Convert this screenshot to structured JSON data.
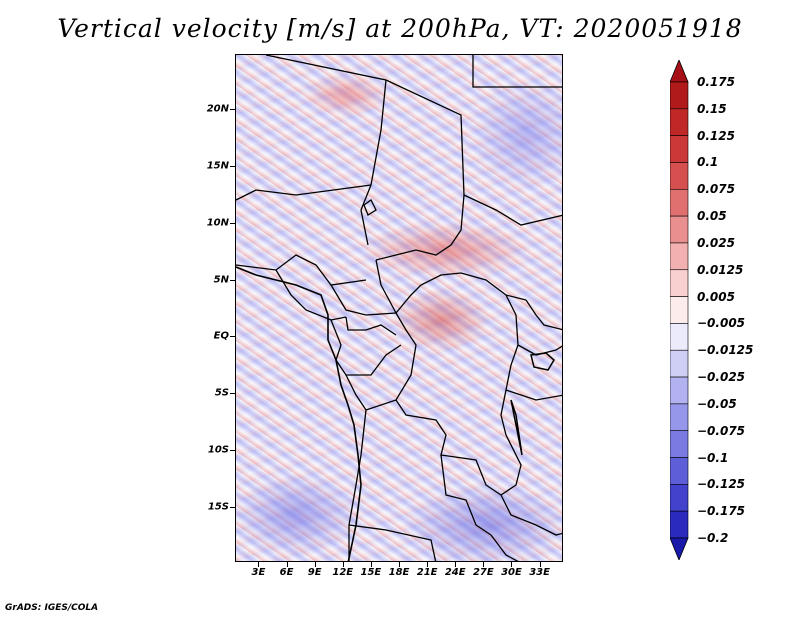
{
  "title": "Vertical velocity [m/s] at 200hPa, VT: 2020051918",
  "credit": "GrADS: IGES/COLA",
  "map": {
    "lat_labels": [
      "20N",
      "15N",
      "10N",
      "5N",
      "EQ",
      "5S",
      "10S",
      "15S"
    ],
    "lat_values": [
      20,
      15,
      10,
      5,
      0,
      -5,
      -10,
      -15
    ],
    "lat_range": [
      -19.8,
      24.8
    ],
    "lon_labels": [
      "3E",
      "6E",
      "9E",
      "12E",
      "15E",
      "18E",
      "21E",
      "24E",
      "27E",
      "30E",
      "33E"
    ],
    "lon_values": [
      3,
      6,
      9,
      12,
      15,
      18,
      21,
      24,
      27,
      30,
      33
    ],
    "lon_range": [
      0.5,
      35.5
    ]
  },
  "colorbar": {
    "labels": [
      "0.175",
      "0.15",
      "0.125",
      "0.1",
      "0.075",
      "0.05",
      "0.025",
      "0.0125",
      "0.005",
      "−0.005",
      "−0.0125",
      "−0.025",
      "−0.05",
      "−0.075",
      "−0.1",
      "−0.125",
      "−0.175",
      "−0.2"
    ],
    "colors": [
      "#a50f15",
      "#b01a1a",
      "#c02828",
      "#cc3838",
      "#d65050",
      "#e06f6f",
      "#ea8f8f",
      "#f2b0b0",
      "#f8d0d0",
      "#fcecec",
      "#ebebfb",
      "#cfcff6",
      "#b2b2f0",
      "#9696ea",
      "#7a7ae2",
      "#5e5ed8",
      "#4242cc",
      "#2a2abf",
      "#1a1aaa"
    ]
  }
}
